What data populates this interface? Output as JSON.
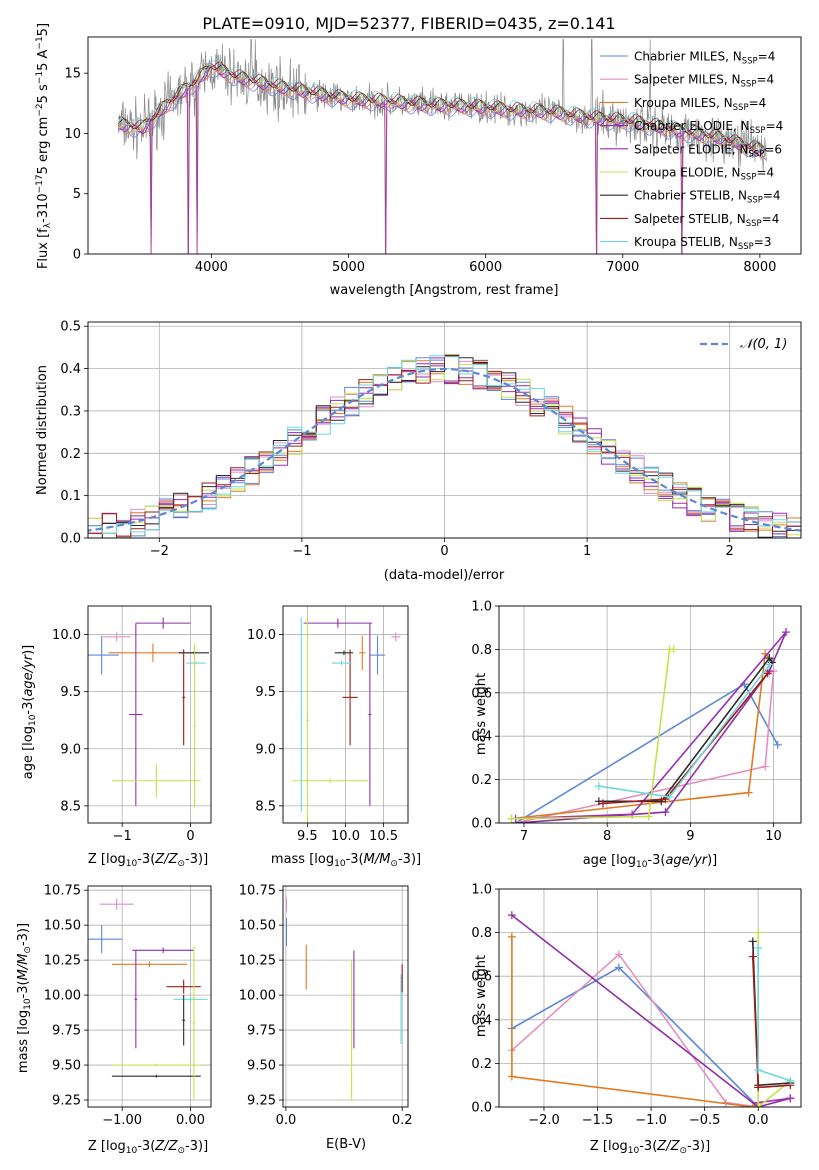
{
  "figure_title": "PLATE=0910, MJD=52377, FIBERID=0435, z=0.141",
  "colors": {
    "chabrier_miles": "#5b88d8",
    "salpeter_miles": "#e58ec0",
    "kroupa_miles": "#e07b22",
    "chabrier_elodie": "#8f2fa8",
    "salpeter_elodie": "#9a2fb6",
    "kroupa_elodie": "#c8e04a",
    "chabrier_stelib": "#2b2b2b",
    "salpeter_stelib": "#a11a1a",
    "kroupa_stelib": "#6ad8de",
    "data": "#888888",
    "gaussian": "#5b88d8"
  },
  "chart_data": [
    {
      "id": "spectrum",
      "type": "line",
      "xlabel": "wavelength [Angstrom, rest frame]",
      "ylabel": "Flux [f$_\\lambda$10$^{-17}$ erg cm$^{-2}$ s$^{-1}$ A$^{-1}$]",
      "ylabel_display": "Flux [fλ10⁻¹⁷ erg cm⁻² s⁻¹ A⁻¹]",
      "xlim": [
        3100,
        8300
      ],
      "ylim": [
        0,
        18
      ],
      "xticks": [
        4000,
        5000,
        6000,
        7000,
        8000
      ],
      "yticks": [
        0,
        5,
        10,
        15
      ],
      "grid": false,
      "legend_placement": "upper-right",
      "legend": [
        {
          "label": "Chabrier MILES, N$_{SSP}$=4",
          "main": "Chabrier MILES, N",
          "sub": "SSP",
          "tail": "=4",
          "color_key": "chabrier_miles"
        },
        {
          "label": "Salpeter MILES, N$_{SSP}$=4",
          "main": "Salpeter MILES, N",
          "sub": "SSP",
          "tail": "=4",
          "color_key": "salpeter_miles"
        },
        {
          "label": "Kroupa MILES, N$_{SSP}$=4",
          "main": "Kroupa MILES, N",
          "sub": "SSP",
          "tail": "=4",
          "color_key": "kroupa_miles"
        },
        {
          "label": "Chabrier ELODIE, N$_{SSP}$=4",
          "main": "Chabrier ELODIE, N",
          "sub": "SSP",
          "tail": "=4",
          "color_key": "chabrier_elodie"
        },
        {
          "label": "Salpeter ELODIE, N$_{SSP}$=6",
          "main": "Salpeter ELODIE, N",
          "sub": "SSP",
          "tail": "=6",
          "color_key": "salpeter_elodie"
        },
        {
          "label": "Kroupa ELODIE, N$_{SSP}$=4",
          "main": "Kroupa ELODIE, N",
          "sub": "SSP",
          "tail": "=4",
          "color_key": "kroupa_elodie"
        },
        {
          "label": "Chabrier STELIB, N$_{SSP}$=4",
          "main": "Chabrier STELIB, N",
          "sub": "SSP",
          "tail": "=4",
          "color_key": "chabrier_stelib"
        },
        {
          "label": "Salpeter STELIB, N$_{SSP}$=4",
          "main": "Salpeter STELIB, N",
          "sub": "SSP",
          "tail": "=4",
          "color_key": "salpeter_stelib"
        },
        {
          "label": "Kroupa STELIB, N$_{SSP}$=3",
          "main": "Kroupa STELIB, N",
          "sub": "SSP",
          "tail": "=3",
          "color_key": "kroupa_stelib"
        }
      ],
      "continuum": {
        "x": [
          3320,
          3500,
          3700,
          3900,
          4000,
          4200,
          4500,
          4800,
          5000,
          5300,
          5600,
          5900,
          6200,
          6500,
          6800,
          7100,
          7400,
          7700,
          8000
        ],
        "y": [
          10.7,
          10.4,
          12.6,
          14.4,
          15.5,
          14.6,
          13.8,
          13.2,
          12.8,
          12.6,
          12.3,
          12.2,
          11.9,
          11.7,
          11.2,
          10.9,
          10.2,
          9.6,
          8.6
        ]
      },
      "absorption_lines": [
        3560,
        3830,
        3895,
        5270,
        6810,
        7430
      ],
      "data_spikes": [
        4290,
        4320,
        6565,
        6775,
        7200
      ]
    },
    {
      "id": "residuals",
      "type": "histogram",
      "xlabel": "(data-model)/error",
      "ylabel": "Normed distribution",
      "xlim": [
        -2.5,
        2.5
      ],
      "ylim": [
        0,
        0.51
      ],
      "xticks": [
        -2,
        -1,
        0,
        1,
        2
      ],
      "yticks": [
        0.0,
        0.1,
        0.2,
        0.3,
        0.4,
        0.5
      ],
      "grid": true,
      "legend_placement": "upper-right",
      "legend_label": "𝒩(0, 1)",
      "bin_width": 0.1
    },
    {
      "id": "age_vs_Z",
      "type": "errorbar",
      "xlabel": "Z [log$_{10}$(Z/Z$_\\odot$)]",
      "ylabel": "age  [log$_{10}$($age/yr$)]",
      "xlim": [
        -1.5,
        0.3
      ],
      "ylim": [
        8.35,
        10.25
      ],
      "xticks": [
        -1,
        0
      ],
      "yticks": [
        8.5,
        9.0,
        9.5,
        10.0
      ],
      "grid": true,
      "points": [
        {
          "color_key": "chabrier_miles",
          "x": -1.3,
          "xerr": 0.25,
          "y": 9.82,
          "yerr": 0.17
        },
        {
          "color_key": "salpeter_miles",
          "x": -1.08,
          "xerr": 0.2,
          "y": 9.98,
          "yerr": 0.04
        },
        {
          "color_key": "kroupa_miles",
          "x": -0.55,
          "xerr": 0.65,
          "y": 9.84,
          "yerr": 0.08
        },
        {
          "color_key": "chabrier_elodie",
          "x": -0.4,
          "xerr": 0.4,
          "y": 10.1,
          "yerr": 0.05
        },
        {
          "color_key": "salpeter_elodie",
          "x": -0.8,
          "xerr": 0.1,
          "y": 9.3,
          "yerr": 0.8
        },
        {
          "color_key": "kroupa_elodie",
          "x": -0.5,
          "xerr": 0.65,
          "y": 8.72,
          "yerr": 0.15
        },
        {
          "color_key": "chabrier_stelib",
          "x": 0.05,
          "xerr": 0.22,
          "y": 9.84,
          "yerr": 0.01
        },
        {
          "color_key": "salpeter_stelib",
          "x": -0.1,
          "xerr": 0.02,
          "y": 9.45,
          "yerr": 0.42
        },
        {
          "color_key": "kroupa_stelib",
          "x": 0.08,
          "xerr": 0.14,
          "y": 9.75,
          "yerr": 0.01
        },
        {
          "color_key": "kroupa_elodie",
          "x": 0.06,
          "xerr": 0.02,
          "y": 9.2,
          "yerr": 0.72
        }
      ]
    },
    {
      "id": "age_vs_mass",
      "type": "errorbar",
      "xlabel": "mass [log$_{10}$($M/M_\\odot$)]",
      "ylabel": "",
      "xlim": [
        9.18,
        10.82
      ],
      "ylim": [
        8.35,
        10.25
      ],
      "xticks": [
        9.5,
        10.0,
        10.5
      ],
      "yticks": [
        8.5,
        9.0,
        9.5,
        10.0
      ],
      "grid": true,
      "points": [
        {
          "color_key": "chabrier_miles",
          "x": 10.42,
          "xerr": 0.1,
          "y": 9.82,
          "yerr": 0.17
        },
        {
          "color_key": "salpeter_miles",
          "x": 10.66,
          "xerr": 0.06,
          "y": 9.98,
          "yerr": 0.04
        },
        {
          "color_key": "kroupa_miles",
          "x": 10.22,
          "xerr": 0.04,
          "y": 9.84,
          "yerr": 0.15
        },
        {
          "color_key": "chabrier_elodie",
          "x": 9.9,
          "xerr": 0.45,
          "y": 10.1,
          "yerr": 0.04
        },
        {
          "color_key": "salpeter_elodie",
          "x": 10.32,
          "xerr": 0.02,
          "y": 9.3,
          "yerr": 0.8
        },
        {
          "color_key": "kroupa_elodie",
          "x": 9.5,
          "xerr": 0.02,
          "y": 9.25,
          "yerr": 0.9
        },
        {
          "color_key": "chabrier_stelib",
          "x": 9.98,
          "xerr": 0.12,
          "y": 9.84,
          "yerr": 0.02
        },
        {
          "color_key": "salpeter_stelib",
          "x": 10.06,
          "xerr": 0.1,
          "y": 9.45,
          "yerr": 0.42
        },
        {
          "color_key": "kroupa_stelib",
          "x": 9.95,
          "xerr": 0.13,
          "y": 9.75,
          "yerr": 0.02
        },
        {
          "color_key": "kroupa_elodie",
          "x": 9.8,
          "xerr": 0.5,
          "y": 8.72,
          "yerr": 0.02
        },
        {
          "color_key": "kroupa_stelib",
          "x": 9.42,
          "xerr": 0.01,
          "y": 9.3,
          "yerr": 0.85
        }
      ]
    },
    {
      "id": "massweight_vs_age",
      "type": "line",
      "xlabel": "age  [log$_{10}$($age/yr$)]",
      "ylabel": "mass weight",
      "xlim": [
        6.7,
        10.33
      ],
      "ylim": [
        0,
        1.0
      ],
      "xticks": [
        7,
        8,
        9,
        10
      ],
      "yticks": [
        0.0,
        0.2,
        0.4,
        0.6,
        0.8,
        1.0
      ],
      "grid": true,
      "series": [
        {
          "color_key": "chabrier_miles",
          "x": [
            6.9,
            9.65,
            10.05
          ],
          "y": [
            0.0,
            0.64,
            0.36
          ]
        },
        {
          "color_key": "salpeter_miles",
          "x": [
            6.9,
            9.9,
            10.0
          ],
          "y": [
            0.0,
            0.26,
            0.7
          ]
        },
        {
          "color_key": "kroupa_miles",
          "x": [
            6.85,
            9.7,
            9.9,
            9.95
          ],
          "y": [
            0.02,
            0.14,
            0.78,
            0.76
          ]
        },
        {
          "color_key": "chabrier_elodie",
          "x": [
            6.9,
            8.7,
            9.95,
            10.15
          ],
          "y": [
            0.0,
            0.05,
            0.7,
            0.88
          ]
        },
        {
          "color_key": "salpeter_elodie",
          "x": [
            6.9,
            8.3,
            10.15
          ],
          "y": [
            0.02,
            0.04,
            0.88
          ]
        },
        {
          "color_key": "kroupa_elodie",
          "x": [
            6.85,
            8.5,
            8.75,
            8.8
          ],
          "y": [
            0.02,
            0.03,
            0.8,
            0.8
          ]
        },
        {
          "color_key": "chabrier_stelib",
          "x": [
            7.9,
            8.65,
            9.95,
            9.98
          ],
          "y": [
            0.1,
            0.1,
            0.76,
            0.74
          ]
        },
        {
          "color_key": "salpeter_stelib",
          "x": [
            7.95,
            8.7,
            9.93
          ],
          "y": [
            0.09,
            0.11,
            0.69
          ]
        },
        {
          "color_key": "kroupa_stelib",
          "x": [
            7.9,
            8.75,
            9.95
          ],
          "y": [
            0.17,
            0.12,
            0.73
          ]
        }
      ]
    },
    {
      "id": "mass_vs_Z",
      "type": "errorbar",
      "xlabel": "Z [log$_{10}$(Z/Z$_\\odot$)]",
      "ylabel": "mass [log$_{10}$($M/M_\\odot$)]",
      "xlim": [
        -1.5,
        0.3
      ],
      "ylim": [
        9.2,
        10.78
      ],
      "xticks": [
        -1,
        0
      ],
      "yticks": [
        9.25,
        9.5,
        9.75,
        10.0,
        10.25,
        10.5,
        10.75
      ],
      "grid": true,
      "points": [
        {
          "color_key": "chabrier_miles",
          "x": -1.3,
          "xerr": 0.3,
          "y": 10.4,
          "yerr": 0.1
        },
        {
          "color_key": "salpeter_miles",
          "x": -1.08,
          "xerr": 0.25,
          "y": 10.65,
          "yerr": 0.04
        },
        {
          "color_key": "kroupa_miles",
          "x": -0.6,
          "xerr": 0.55,
          "y": 10.22,
          "yerr": 0.02
        },
        {
          "color_key": "chabrier_elodie",
          "x": -0.4,
          "xerr": 0.45,
          "y": 10.32,
          "yerr": 0.02
        },
        {
          "color_key": "salpeter_elodie",
          "x": -0.8,
          "xerr": 0.02,
          "y": 9.97,
          "yerr": 0.35
        },
        {
          "color_key": "kroupa_elodie",
          "x": -0.5,
          "xerr": 0.65,
          "y": 9.5,
          "yerr": 0.01
        },
        {
          "color_key": "chabrier_stelib",
          "x": -0.5,
          "xerr": 0.65,
          "y": 9.42,
          "yerr": 0.01
        },
        {
          "color_key": "salpeter_stelib",
          "x": -0.1,
          "xerr": 0.25,
          "y": 10.06,
          "yerr": 0.05
        },
        {
          "color_key": "kroupa_stelib",
          "x": 0.0,
          "xerr": 0.25,
          "y": 9.97,
          "yerr": 0.02
        },
        {
          "color_key": "kroupa_elodie",
          "x": 0.05,
          "xerr": 0.02,
          "y": 9.8,
          "yerr": 0.55
        },
        {
          "color_key": "chabrier_stelib",
          "x": -0.1,
          "xerr": 0.02,
          "y": 9.82,
          "yerr": 0.18
        }
      ]
    },
    {
      "id": "mass_vs_EBV",
      "type": "errorbar",
      "xlabel": "E(B-V)",
      "ylabel": "",
      "xlim": [
        -0.005,
        0.21
      ],
      "ylim": [
        9.2,
        10.78
      ],
      "xticks": [
        0.0,
        0.2
      ],
      "yticks": [
        9.25,
        9.5,
        9.75,
        10.0,
        10.25,
        10.5,
        10.75
      ],
      "grid": true,
      "points": [
        {
          "color_key": "salpeter_miles",
          "x": 0.001,
          "xerr": 0.001,
          "y": 10.65,
          "yerr": 0.05
        },
        {
          "color_key": "chabrier_miles",
          "x": 0.001,
          "xerr": 0.001,
          "y": 10.45,
          "yerr": 0.1
        },
        {
          "color_key": "kroupa_miles",
          "x": 0.035,
          "xerr": 0.001,
          "y": 10.2,
          "yerr": 0.16
        },
        {
          "color_key": "chabrier_elodie",
          "x": 0.117,
          "xerr": 0.001,
          "y": 9.97,
          "yerr": 0.35
        },
        {
          "color_key": "kroupa_elodie",
          "x": 0.113,
          "xerr": 0.001,
          "y": 9.75,
          "yerr": 0.5
        },
        {
          "color_key": "salpeter_stelib",
          "x": 0.2,
          "xerr": 0.001,
          "y": 10.12,
          "yerr": 0.1
        },
        {
          "color_key": "kroupa_stelib",
          "x": 0.198,
          "xerr": 0.001,
          "y": 9.9,
          "yerr": 0.25
        }
      ]
    },
    {
      "id": "massweight_vs_Z",
      "type": "line",
      "xlabel": "Z [log$_{10}$(Z/Z$_\\odot$)]",
      "ylabel": "mass weight",
      "xlim": [
        -2.42,
        0.4
      ],
      "ylim": [
        0,
        1.0
      ],
      "xticks": [
        -2.0,
        -1.5,
        -1.0,
        -0.5,
        0.0
      ],
      "yticks": [
        0.0,
        0.2,
        0.4,
        0.6,
        0.8,
        1.0
      ],
      "grid": true,
      "series": [
        {
          "color_key": "chabrier_miles",
          "x": [
            -2.3,
            -1.3,
            0.0
          ],
          "y": [
            0.36,
            0.64,
            0.0
          ]
        },
        {
          "color_key": "salpeter_miles",
          "x": [
            -2.3,
            -1.3,
            -0.3,
            0.0
          ],
          "y": [
            0.26,
            0.7,
            0.02,
            0.0
          ]
        },
        {
          "color_key": "kroupa_miles",
          "x": [
            -2.3,
            -2.3,
            -2.3,
            -0.05,
            0.0
          ],
          "y": [
            0.78,
            0.78,
            0.14,
            0.0,
            0.02
          ]
        },
        {
          "color_key": "chabrier_elodie",
          "x": [
            -2.3,
            0.0,
            0.3
          ],
          "y": [
            0.88,
            0.0,
            0.04
          ]
        },
        {
          "color_key": "salpeter_elodie",
          "x": [
            0.0,
            0.3
          ],
          "y": [
            0.02,
            0.04
          ]
        },
        {
          "color_key": "kroupa_elodie",
          "x": [
            0.0,
            0.0,
            0.3
          ],
          "y": [
            0.8,
            0.0,
            0.12
          ]
        },
        {
          "color_key": "chabrier_stelib",
          "x": [
            -0.05,
            0.0,
            0.3
          ],
          "y": [
            0.76,
            0.1,
            0.11
          ]
        },
        {
          "color_key": "salpeter_stelib",
          "x": [
            -0.05,
            0.0,
            0.3
          ],
          "y": [
            0.69,
            0.09,
            0.1
          ]
        },
        {
          "color_key": "kroupa_stelib",
          "x": [
            0.0,
            0.0,
            0.3
          ],
          "y": [
            0.73,
            0.17,
            0.12
          ]
        }
      ]
    }
  ]
}
